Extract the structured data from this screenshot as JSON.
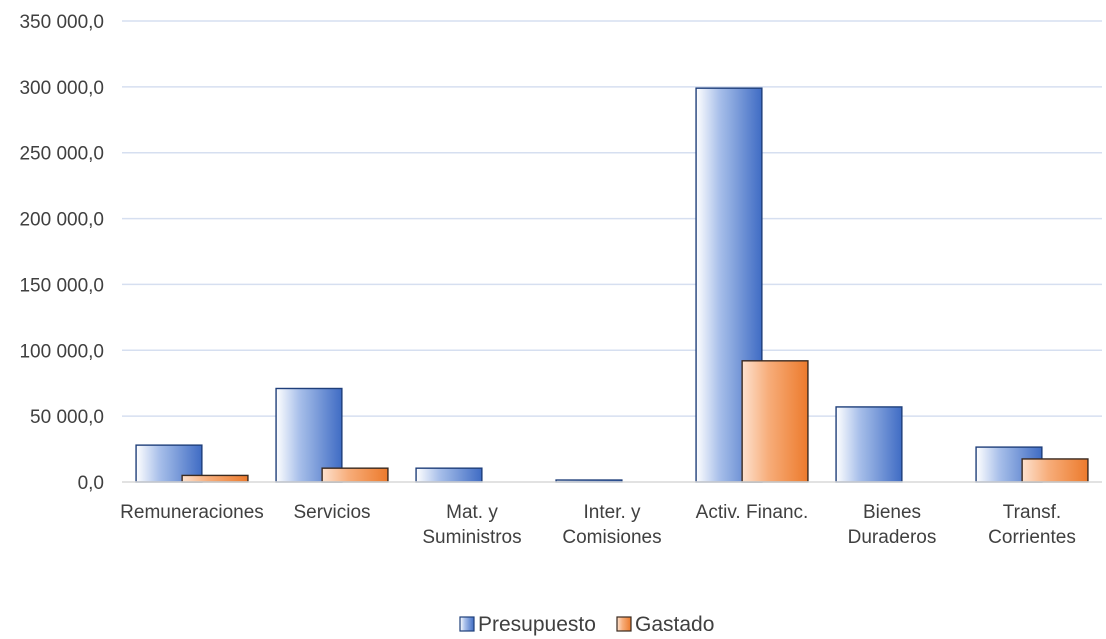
{
  "chart_data": {
    "type": "bar",
    "title": "",
    "xlabel": "",
    "ylabel": "",
    "ylim": [
      0,
      350000
    ],
    "yticks": [
      0,
      50000,
      100000,
      150000,
      200000,
      250000,
      300000,
      350000
    ],
    "ytick_labels": [
      "0,0",
      "50 000,0",
      "100 000,0",
      "150 000,0",
      "200 000,0",
      "250 000,0",
      "300 000,0",
      "350 000,0"
    ],
    "grid": true,
    "legend_position": "bottom",
    "categories": [
      [
        "Remuneraciones"
      ],
      [
        "Servicios"
      ],
      [
        "Mat. y",
        "Suministros"
      ],
      [
        "Inter. y",
        "Comisiones"
      ],
      [
        "Activ. Financ."
      ],
      [
        "Bienes",
        "Duraderos"
      ],
      [
        "Transf.",
        "Corrientes"
      ]
    ],
    "series": [
      {
        "name": "Presupuesto",
        "color": "#4472C4",
        "values": [
          28000,
          71000,
          10500,
          1500,
          299000,
          57000,
          26500
        ]
      },
      {
        "name": "Gastado",
        "color": "#ED7D31",
        "values": [
          5000,
          10500,
          0,
          0,
          92000,
          0,
          17500
        ]
      }
    ]
  }
}
